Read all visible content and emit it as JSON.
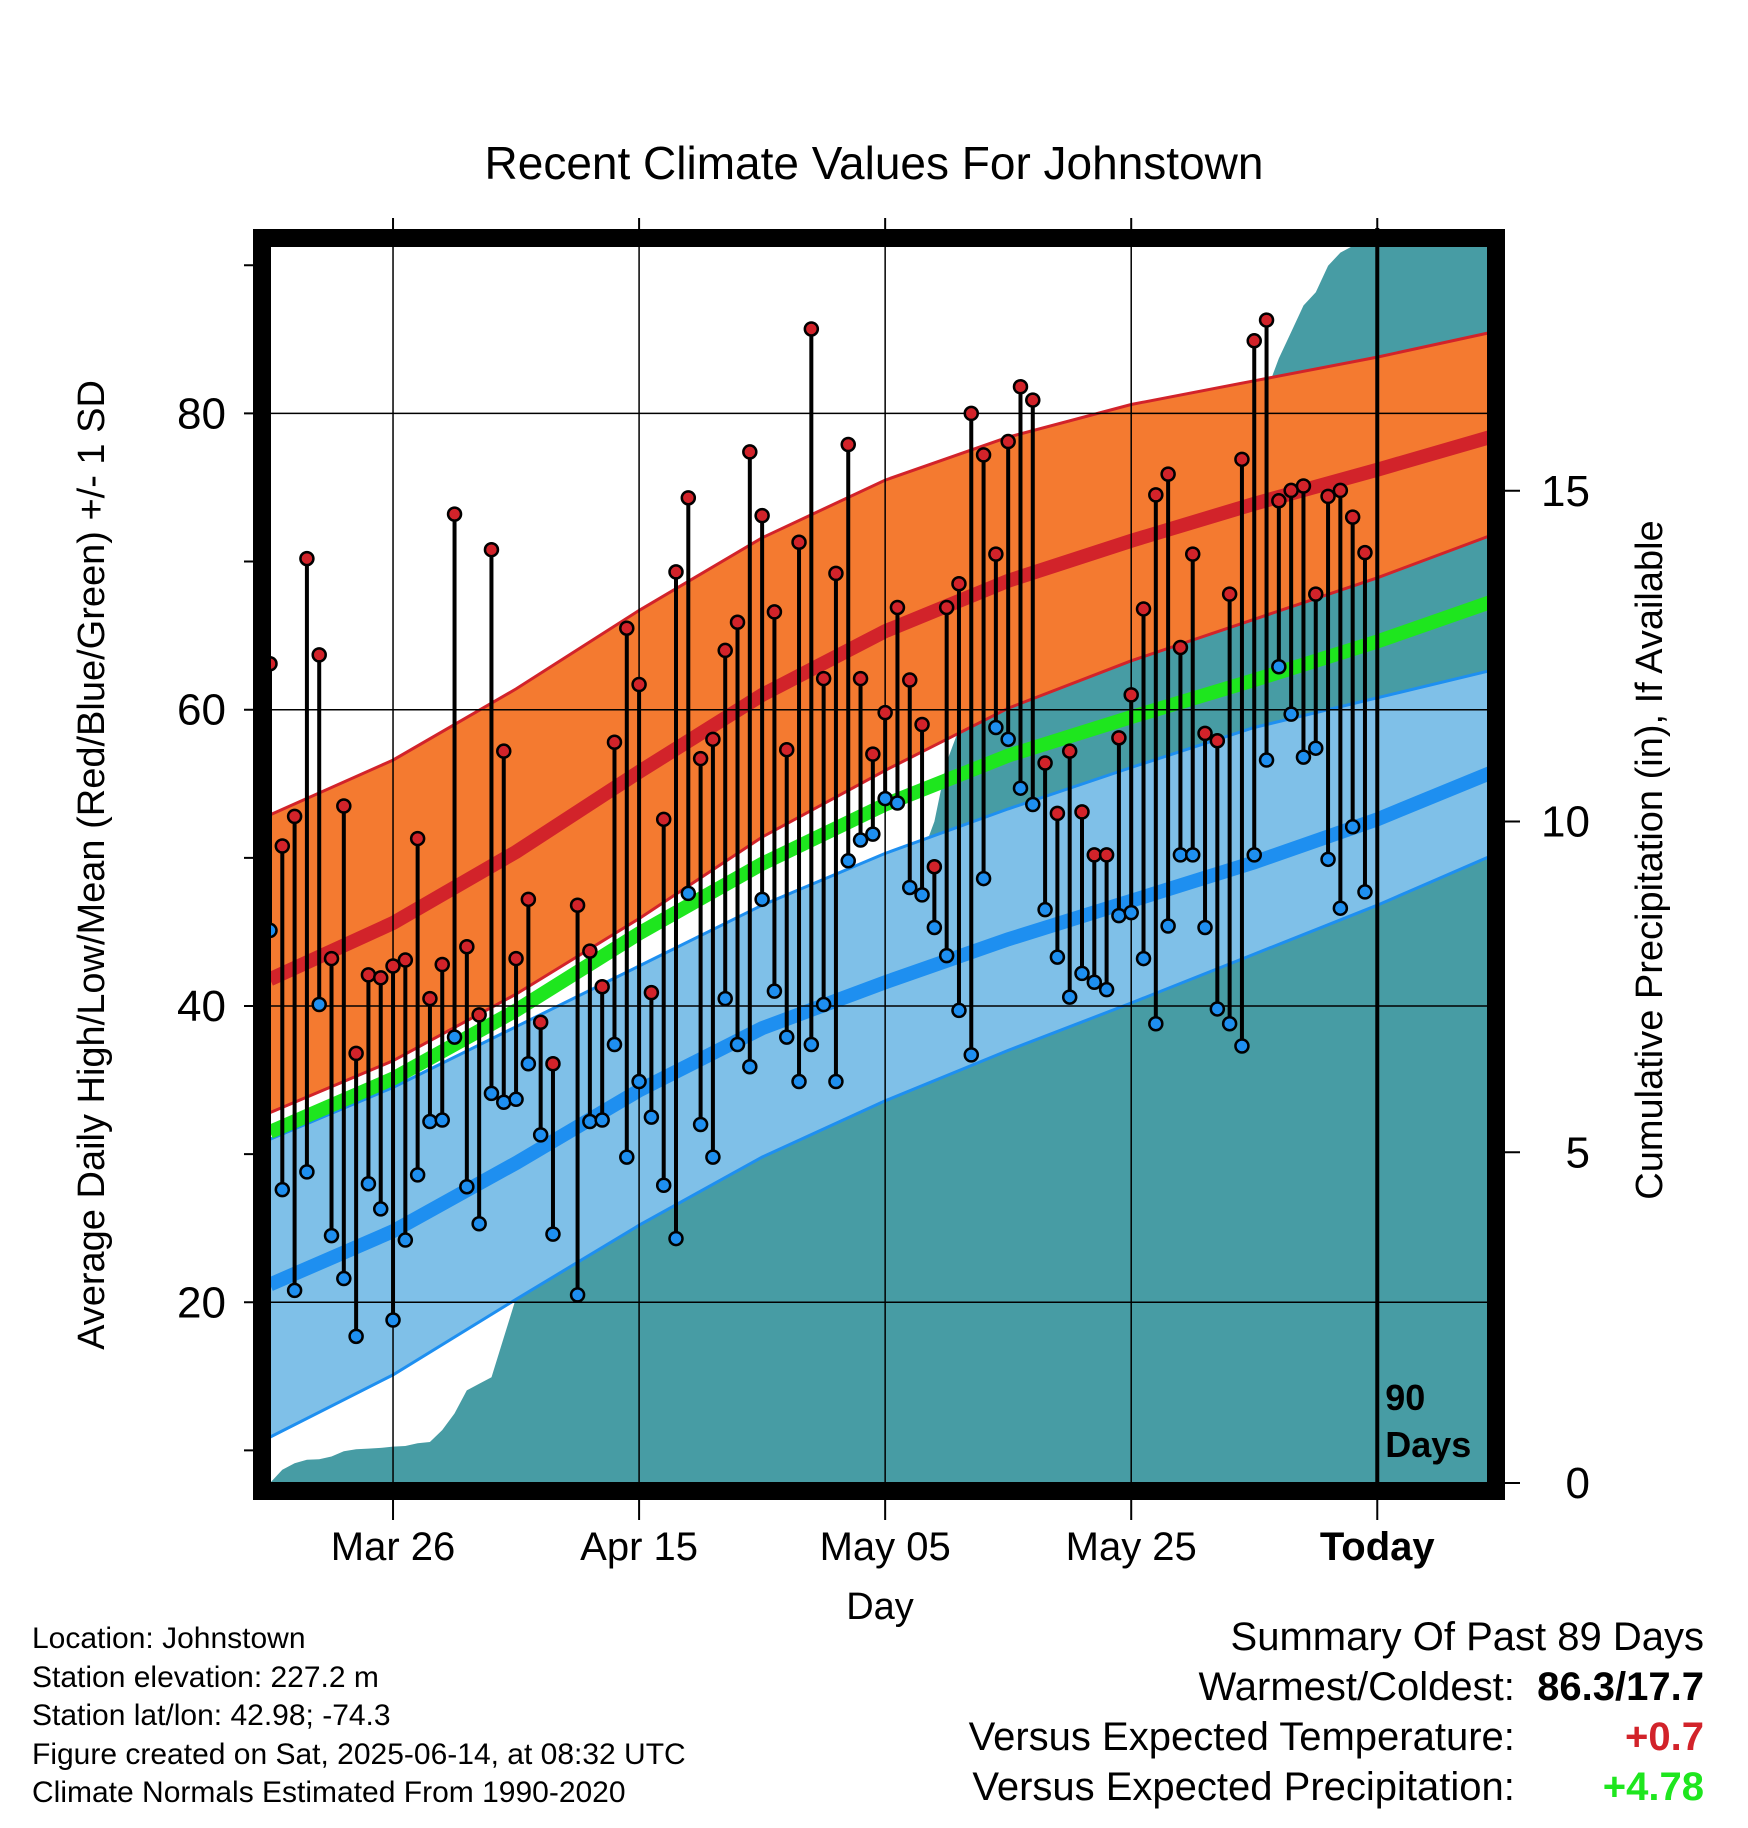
{
  "title": "Recent Climate Values For Johnstown",
  "colors": {
    "high_band": "#f47a30",
    "high_line": "#d2232a",
    "low_band": "#7fc0e8",
    "low_line": "#1e8ff0",
    "mean_line": "#1ee61e",
    "precip": "#479ca4",
    "high_dot": "#d2232a",
    "low_dot": "#1e8ff0",
    "warm_value": "#d2232a",
    "precip_value": "#1ee61e"
  },
  "chart_data": {
    "type": "line",
    "title": "Recent Climate Values For Johnstown",
    "xlabel": "Day",
    "ylabel": "Average Daily High/Low/Mean (Red/Blue/Green) +/- 1 SD",
    "y2label": "Cumulative Precipitation (in), If Available",
    "x_unit": "day",
    "x_range": [
      "Mar 16",
      "Jun 23"
    ],
    "ylim": [
      7.8,
      91.3
    ],
    "y_ticks": [
      20,
      40,
      60,
      80
    ],
    "y2lim": [
      0,
      18.7
    ],
    "y2_ticks": [
      0,
      5,
      10,
      15
    ],
    "x_ticks": [
      {
        "date": "Mar 26",
        "label": "Mar 26"
      },
      {
        "date": "Apr 15",
        "label": "Apr 15"
      },
      {
        "date": "May 05",
        "label": "May 05"
      },
      {
        "date": "May 25",
        "label": "May 25"
      },
      {
        "date": "Jun 14",
        "label": "Today"
      }
    ],
    "today_marker": {
      "date": "Jun 14",
      "label_line1": "90",
      "label_line2": "Days"
    },
    "grid": true,
    "normals": {
      "dates": [
        "Mar 16",
        "Mar 26",
        "Apr 05",
        "Apr 15",
        "Apr 25",
        "May 05",
        "May 15",
        "May 25",
        "Jun 04",
        "Jun 14",
        "Jun 24"
      ],
      "high_mean": [
        41.8,
        45.6,
        50.4,
        55.8,
        61.0,
        65.3,
        68.7,
        71.4,
        73.9,
        76.2,
        78.6
      ],
      "high_upper": [
        52.9,
        56.6,
        61.4,
        66.7,
        71.6,
        75.5,
        78.4,
        80.6,
        82.2,
        83.8,
        85.6
      ],
      "high_lower": [
        32.8,
        36.3,
        40.8,
        45.9,
        51.4,
        55.9,
        60.1,
        63.3,
        66.1,
        68.9,
        72.0
      ],
      "mean": [
        31.5,
        35.1,
        39.7,
        44.9,
        49.6,
        53.6,
        56.9,
        59.5,
        62.0,
        64.6,
        67.5
      ],
      "low_mean": [
        21.2,
        24.8,
        29.4,
        34.3,
        38.5,
        41.6,
        44.5,
        47.1,
        49.7,
        52.6,
        56.0
      ],
      "low_upper": [
        31.0,
        34.5,
        38.6,
        42.7,
        46.8,
        50.3,
        53.3,
        56.1,
        58.8,
        60.8,
        62.8
      ],
      "low_lower": [
        10.9,
        15.1,
        20.2,
        25.2,
        29.8,
        33.6,
        37.0,
        40.2,
        43.5,
        46.8,
        50.4
      ]
    },
    "series": [
      {
        "name": "Red",
        "marker": "high",
        "values": [
          63.1,
          50.8,
          52.8,
          70.2,
          63.7,
          43.2,
          53.5,
          36.8,
          42.1,
          41.9,
          42.7,
          43.1,
          51.3,
          40.5,
          42.8,
          73.2,
          44.0,
          39.4,
          70.8,
          57.2,
          43.2,
          47.2,
          38.9,
          36.1,
          null,
          46.8,
          43.7,
          41.3,
          57.8,
          65.5,
          61.7,
          40.9,
          52.6,
          69.3,
          74.3,
          56.7,
          58.0,
          64.0,
          65.9,
          77.4,
          73.1,
          66.6,
          57.3,
          71.3,
          85.7,
          62.1,
          69.2,
          77.9,
          62.1,
          57.0,
          59.8,
          66.9,
          62.0,
          59.0,
          49.4,
          66.9,
          68.5,
          80.0,
          77.2,
          70.5,
          78.1,
          81.8,
          80.9,
          56.4,
          53.0,
          57.2,
          53.1,
          50.2,
          50.2,
          58.1,
          61.0,
          66.8,
          74.5,
          75.9,
          64.2,
          70.5,
          58.4,
          57.9,
          67.8,
          76.9,
          84.9,
          86.3,
          74.1,
          74.8,
          75.1,
          67.8,
          74.4,
          74.8,
          73.0,
          70.6
        ]
      },
      {
        "name": "Blue",
        "marker": "low",
        "values": [
          45.1,
          27.6,
          20.8,
          28.8,
          40.1,
          24.5,
          21.6,
          17.7,
          28.0,
          26.3,
          18.8,
          24.2,
          28.6,
          32.2,
          32.3,
          37.9,
          27.8,
          25.3,
          34.1,
          33.5,
          33.7,
          36.1,
          31.3,
          24.6,
          null,
          20.5,
          32.2,
          32.3,
          37.4,
          29.8,
          34.9,
          32.5,
          27.9,
          24.3,
          47.6,
          32.0,
          29.8,
          40.5,
          37.4,
          35.9,
          47.2,
          41.0,
          37.9,
          34.9,
          37.4,
          40.1,
          34.9,
          49.8,
          51.2,
          51.6,
          54.0,
          53.7,
          48.0,
          47.5,
          45.3,
          43.4,
          39.7,
          36.7,
          48.6,
          58.8,
          58.0,
          54.7,
          53.6,
          46.5,
          43.3,
          40.6,
          42.2,
          41.6,
          41.1,
          46.1,
          46.3,
          43.2,
          38.8,
          45.4,
          50.2,
          50.2,
          45.3,
          39.8,
          38.8,
          37.3,
          50.2,
          56.6,
          62.9,
          59.7,
          56.8,
          57.4,
          49.9,
          46.6,
          52.1,
          47.7
        ]
      }
    ],
    "precip_cumulative": [
      0.2,
      0.3,
      0.35,
      0.36,
      0.4,
      0.48,
      0.51,
      0.52,
      0.53,
      0.55,
      0.56,
      0.6,
      0.62,
      0.8,
      1.05,
      1.4,
      1.5,
      1.6,
      2.2,
      2.8,
      3.1,
      3.5,
      4.0,
      4.0,
      4.1,
      4.15,
      4.2,
      4.3,
      4.5,
      4.6,
      4.65,
      4.7,
      4.72,
      4.75,
      4.8,
      5.1,
      5.2,
      5.3,
      5.4,
      5.45,
      5.5,
      5.6,
      6.3,
      6.5,
      6.7,
      7.0,
      7.2,
      7.4,
      7.8,
      8.4,
      8.8,
      9.2,
      9.5,
      10.0,
      10.9,
      11.4,
      11.6,
      11.7,
      11.8,
      11.9,
      12.0,
      12.1,
      12.2,
      12.3,
      12.5,
      12.6,
      12.8,
      13.0,
      13.3,
      13.5,
      13.8,
      14.1,
      14.4,
      14.7,
      15.0,
      15.2,
      15.3,
      15.5,
      15.8,
      16.1,
      16.5,
      17.0,
      17.4,
      17.8,
      18.0,
      18.4,
      18.6,
      18.7,
      18.7,
      18.7
    ]
  },
  "xlabel": "Day",
  "ylabel": "Average Daily High/Low/Mean (Red/Blue/Green) +/- 1 SD",
  "y2label": "Cumulative Precipitation (in), If Available",
  "footer": {
    "location": "Location: Johnstown",
    "elevation": "Station elevation: 227.2 m",
    "latlon": "Station lat/lon: 42.98; -74.3",
    "created": "Figure created on Sat, 2025-06-14, at 08:32 UTC",
    "normals": "Climate Normals Estimated From 1990-2020"
  },
  "summary": {
    "heading": "Summary Of Past 89 Days",
    "warm_cold_label": "Warmest/Coldest:",
    "warmest": "86.3",
    "separator": "/",
    "coldest": "17.7",
    "temp_label": "Versus Expected Temperature:",
    "temp_value": "+0.7",
    "precip_label": "Versus Expected Precipitation:",
    "precip_value": "+4.78"
  }
}
